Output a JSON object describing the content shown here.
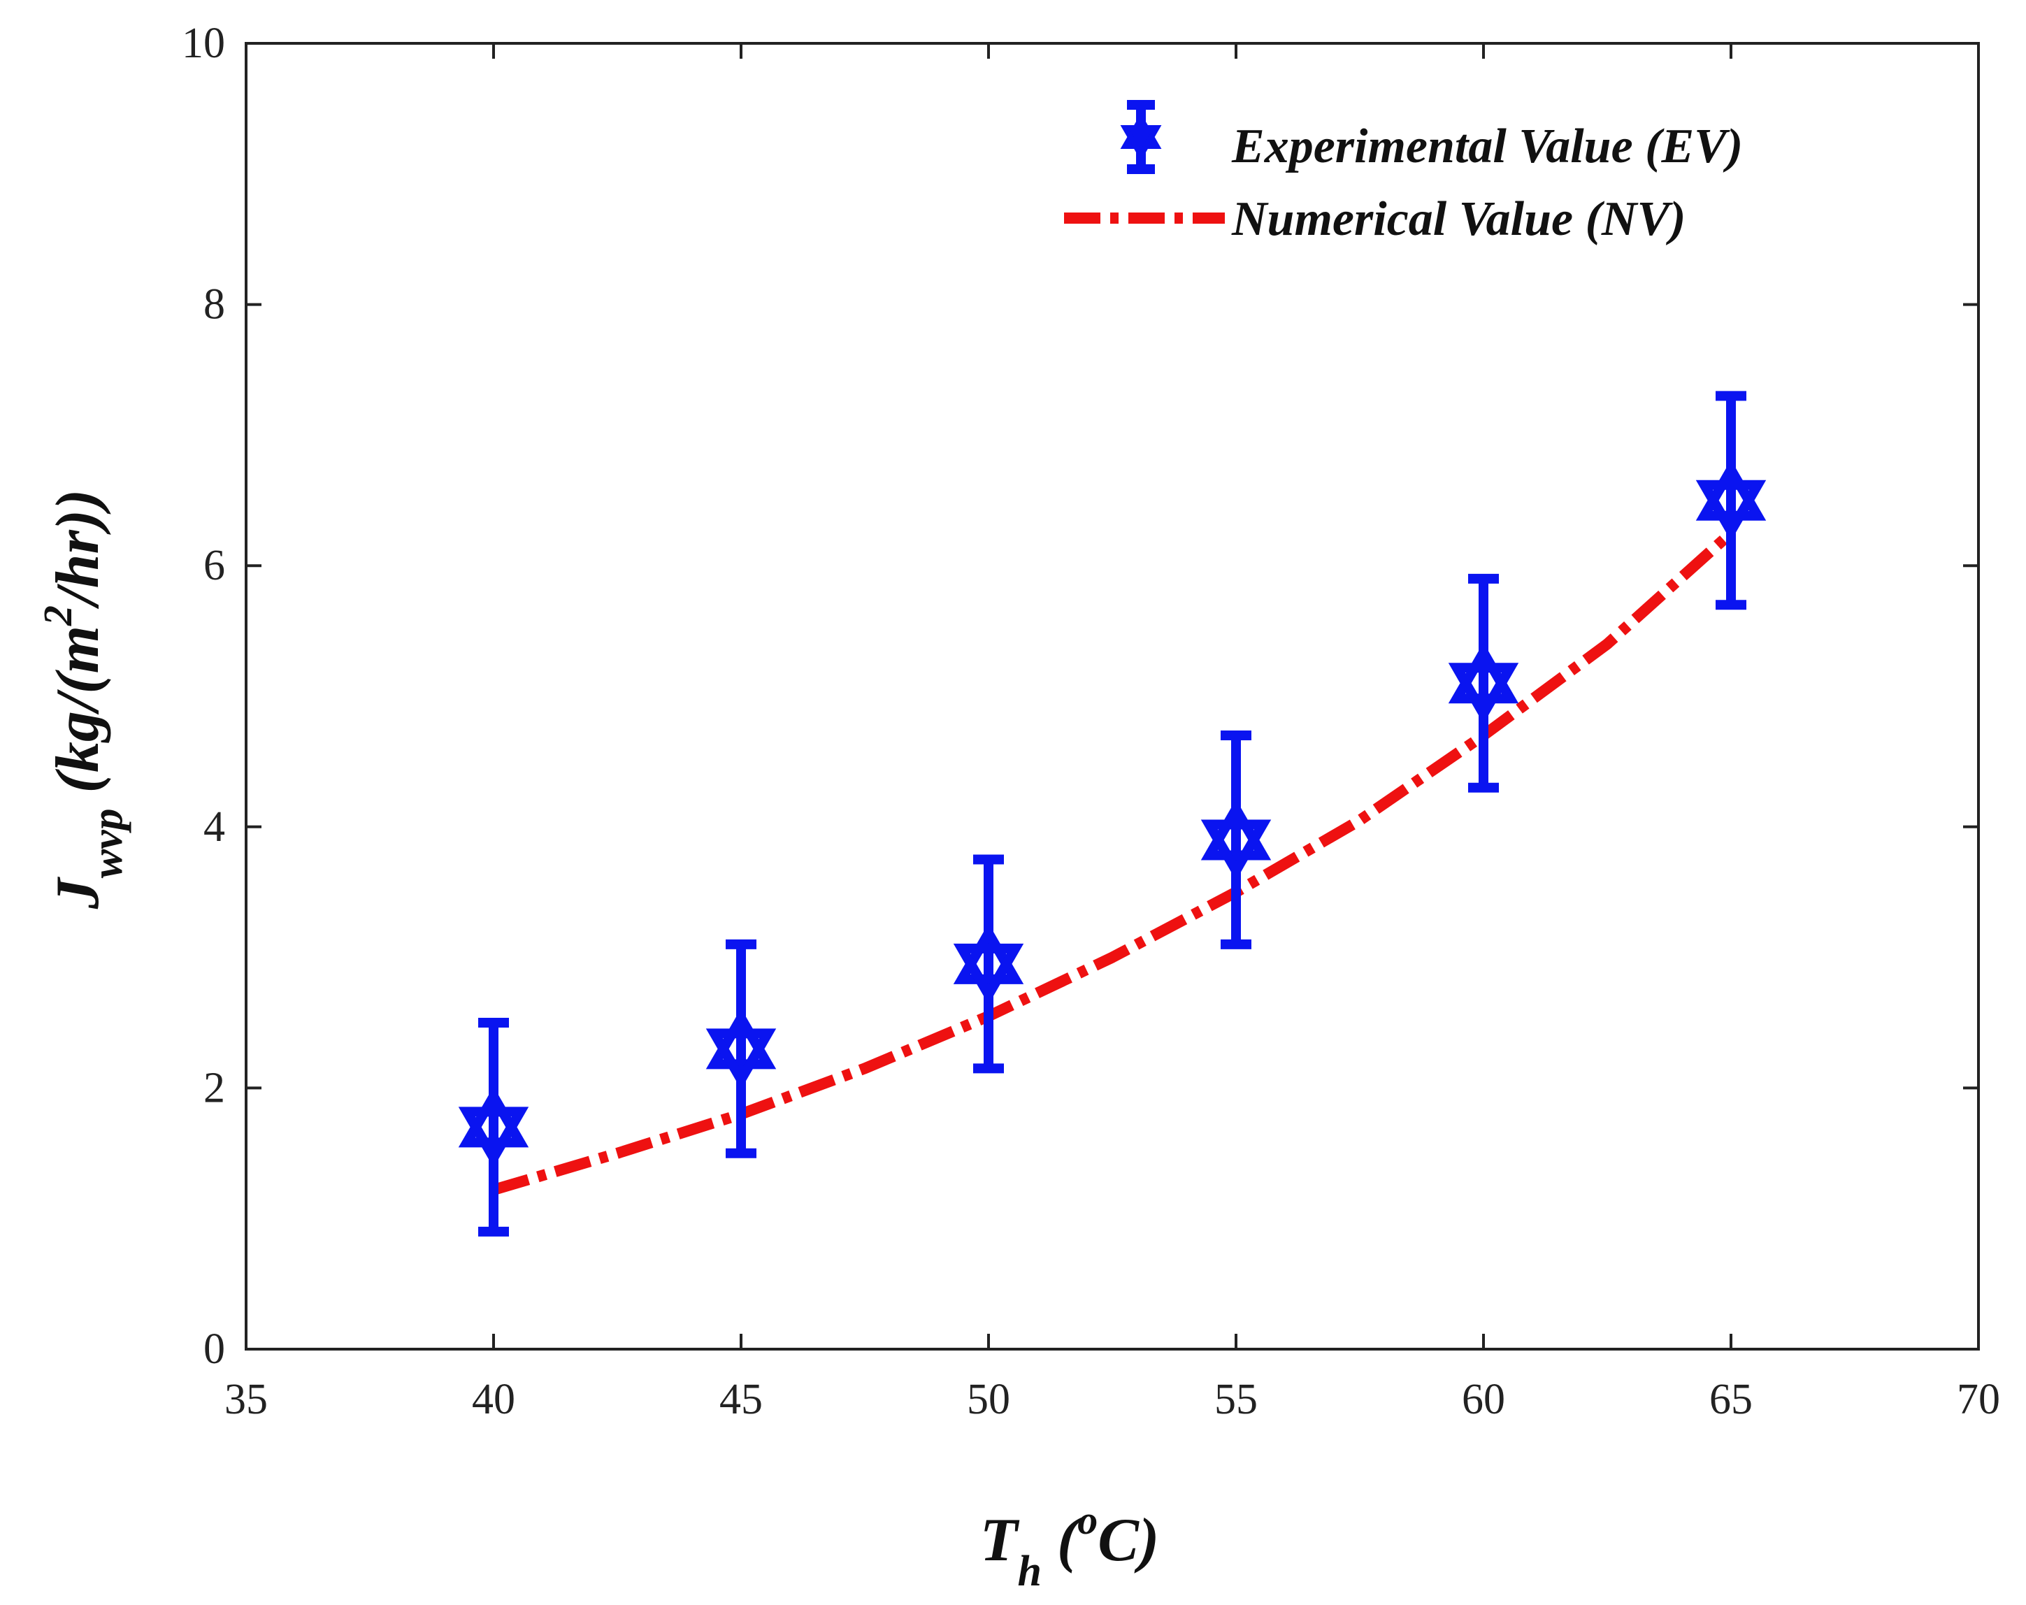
{
  "chart_data": {
    "type": "scatter",
    "title": "",
    "xlabel": {
      "main": "T",
      "sub": "h",
      "unit_open": " (",
      "unit_sup": "o",
      "unit_rest": "C)"
    },
    "ylabel": {
      "main": "J",
      "sub": "wvp",
      "unit_open": " (kg/(m",
      "unit_sup": "2",
      "unit_rest": "/hr))"
    },
    "xlim": [
      35,
      70
    ],
    "ylim": [
      0,
      10
    ],
    "xticks": [
      35,
      40,
      45,
      50,
      55,
      60,
      65,
      70
    ],
    "yticks": [
      0,
      2,
      4,
      6,
      8,
      10
    ],
    "grid": false,
    "legend_position": "top-right",
    "series": [
      {
        "name": "Experimental Value (EV)",
        "kind": "errorbar",
        "marker": "hexagram",
        "color": "#0a14f0",
        "x": [
          40,
          45,
          50,
          55,
          60,
          65
        ],
        "y": [
          1.7,
          2.3,
          2.95,
          3.9,
          5.1,
          6.5
        ],
        "yerr_low": [
          0.9,
          1.5,
          2.15,
          3.1,
          4.3,
          5.7
        ],
        "yerr_high": [
          2.5,
          3.1,
          3.75,
          4.7,
          5.9,
          7.3
        ]
      },
      {
        "name": "Numerical Value (NV)",
        "kind": "line",
        "style": "dash-dot",
        "color": "#ee1111",
        "x": [
          40,
          42.5,
          45,
          47.5,
          50,
          52.5,
          55,
          57.5,
          60,
          62.5,
          65
        ],
        "y": [
          1.22,
          1.5,
          1.8,
          2.15,
          2.55,
          3.0,
          3.5,
          4.05,
          4.7,
          5.4,
          6.25
        ]
      }
    ]
  }
}
